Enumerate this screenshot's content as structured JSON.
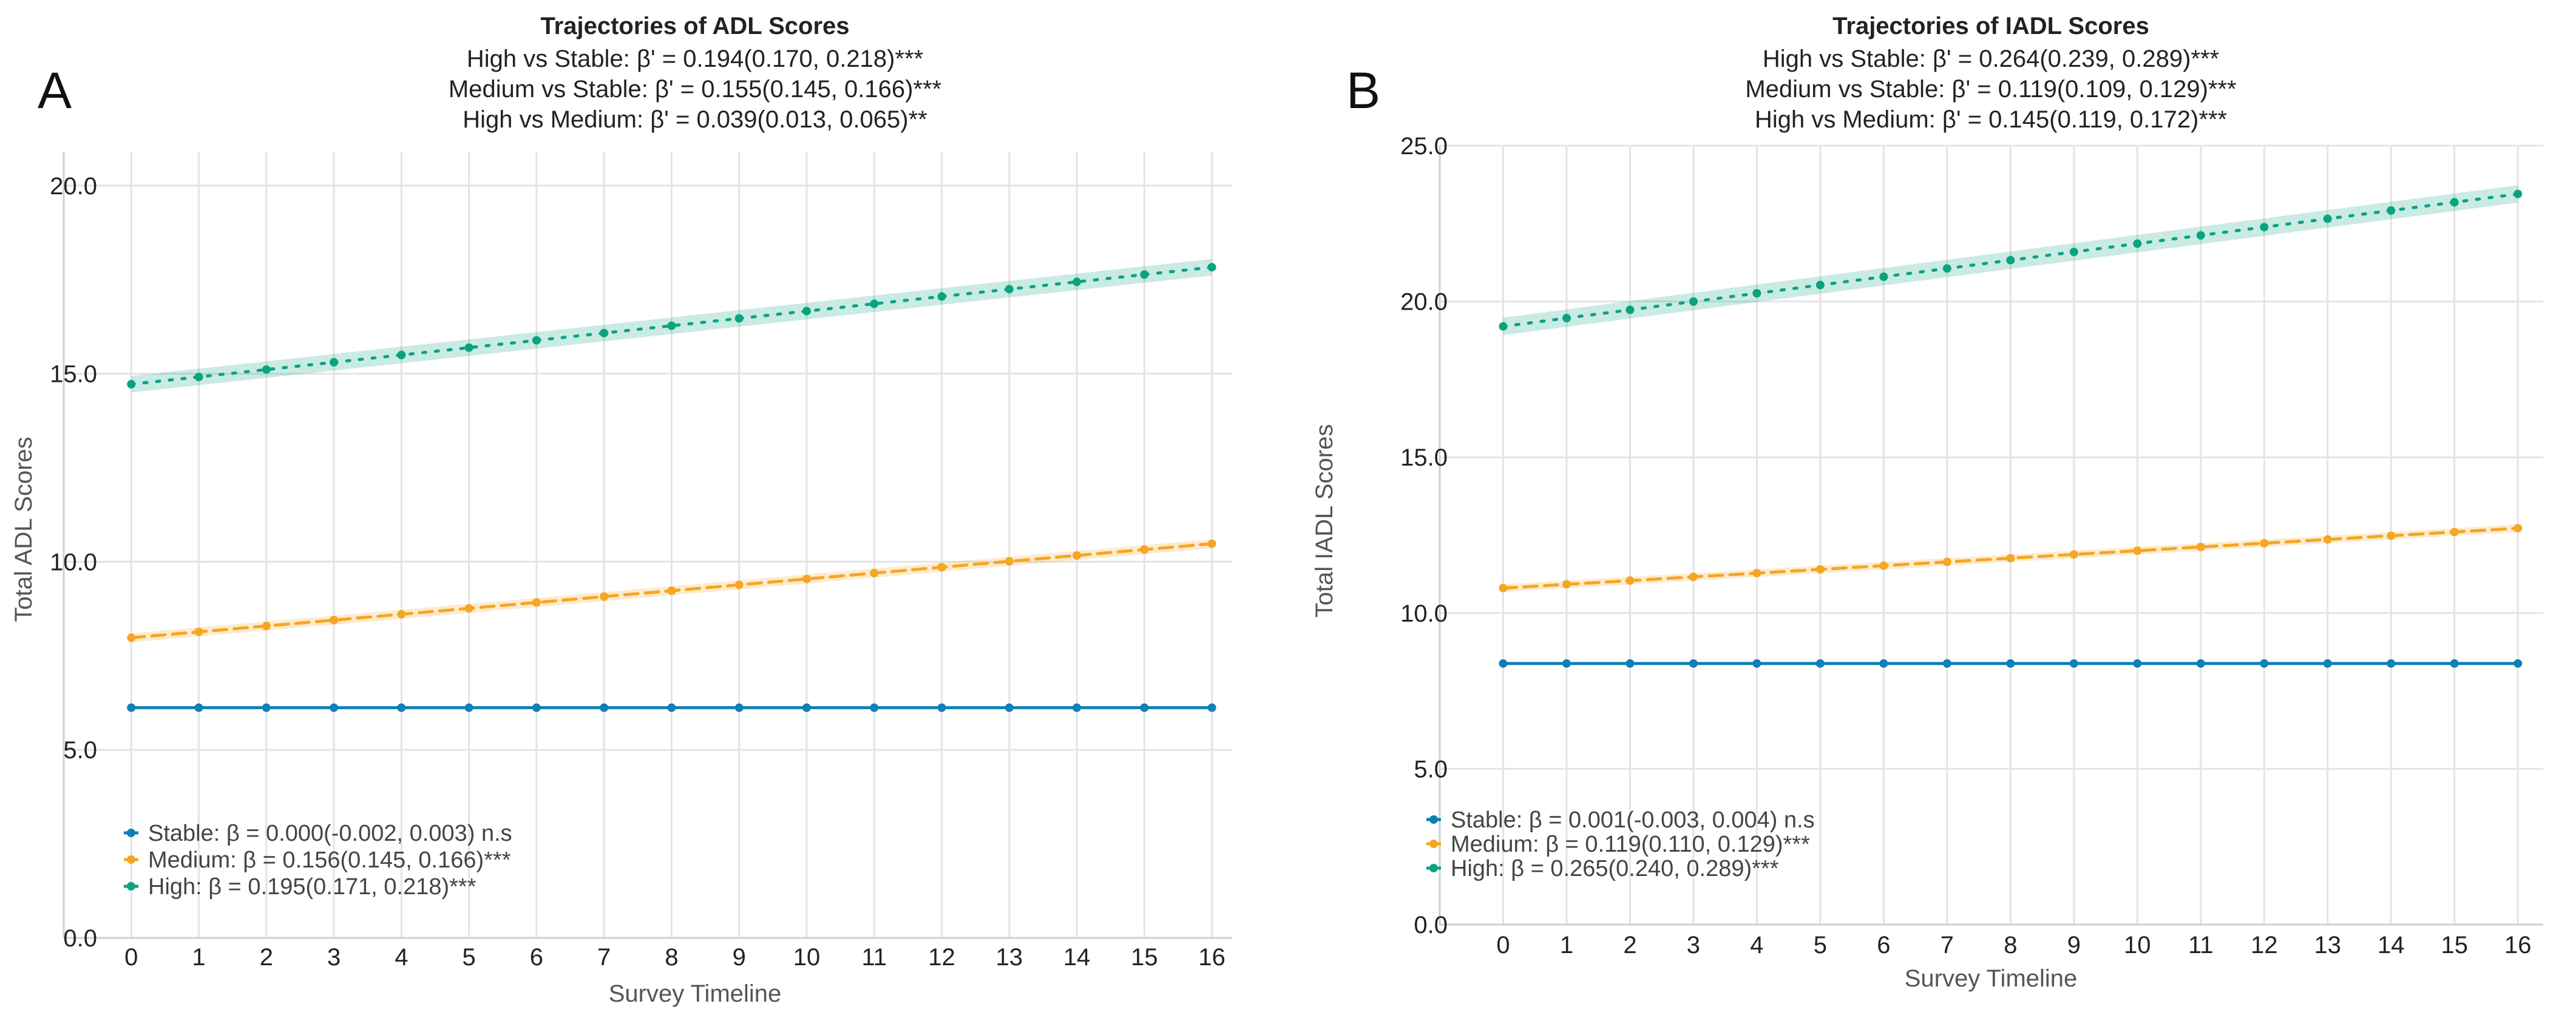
{
  "chart_data": [
    {
      "type": "line",
      "panel_label": "A",
      "title": "Trajectories of ADL Scores",
      "subtitle": [
        "High vs Stable: β' = 0.194(0.170, 0.218)***",
        "Medium vs Stable: β' = 0.155(0.145, 0.166)***",
        "High vs Medium: β' = 0.039(0.013, 0.065)**"
      ],
      "xlabel": "Survey Timeline",
      "ylabel": "Total ADL Scores",
      "x": [
        0,
        1,
        2,
        3,
        4,
        5,
        6,
        7,
        8,
        9,
        10,
        11,
        12,
        13,
        14,
        15,
        16
      ],
      "ylim": [
        0,
        20.9
      ],
      "xlim": [
        -1,
        16.3
      ],
      "yticks": [
        "0.0",
        "5.0",
        "10.0",
        "15.0",
        "20.0"
      ],
      "grid": true,
      "legend_position": "lower-left",
      "series": [
        {
          "name": "Stable",
          "legend_label": "Stable: β = 0.000(-0.002, 0.003) n.s",
          "color": "#0f7fb8",
          "style": "solid",
          "start": 6.12,
          "end": 6.12,
          "ci": 0.03
        },
        {
          "name": "Medium",
          "legend_label": "Medium: β = 0.156(0.145, 0.166)***",
          "color": "#f5a623",
          "style": "dashed",
          "start": 7.98,
          "end": 10.48,
          "ci": 0.12
        },
        {
          "name": "High",
          "legend_label": "High: β = 0.195(0.171, 0.218)***",
          "color": "#0aa37f",
          "style": "dotted",
          "start": 14.72,
          "end": 17.83,
          "ci": 0.22
        }
      ]
    },
    {
      "type": "line",
      "panel_label": "B",
      "title": "Trajectories of IADL Scores",
      "subtitle": [
        "High vs Stable: β' = 0.264(0.239, 0.289)***",
        "Medium vs Stable: β' = 0.119(0.109, 0.129)***",
        "High vs Medium: β' = 0.145(0.119, 0.172)***"
      ],
      "xlabel": "Survey Timeline",
      "ylabel": "Total IADL Scores",
      "x": [
        0,
        1,
        2,
        3,
        4,
        5,
        6,
        7,
        8,
        9,
        10,
        11,
        12,
        13,
        14,
        15,
        16
      ],
      "ylim": [
        0,
        25.0
      ],
      "xlim": [
        -1,
        16.4
      ],
      "yticks": [
        "0.0",
        "5.0",
        "10.0",
        "15.0",
        "20.0",
        "25.0"
      ],
      "grid": true,
      "legend_position": "lower-left",
      "series": [
        {
          "name": "Stable",
          "legend_label": "Stable: β = 0.001(-0.003, 0.004) n.s",
          "color": "#0f7fb8",
          "style": "solid",
          "start": 8.38,
          "end": 8.38,
          "ci": 0.04
        },
        {
          "name": "Medium",
          "legend_label": "Medium: β = 0.119(0.110, 0.129)***",
          "color": "#f5a623",
          "style": "dashed",
          "start": 10.8,
          "end": 12.72,
          "ci": 0.12
        },
        {
          "name": "High",
          "legend_label": "High: β = 0.265(0.240, 0.289)***",
          "color": "#0aa37f",
          "style": "dotted",
          "start": 19.2,
          "end": 23.45,
          "ci": 0.28
        }
      ]
    }
  ]
}
